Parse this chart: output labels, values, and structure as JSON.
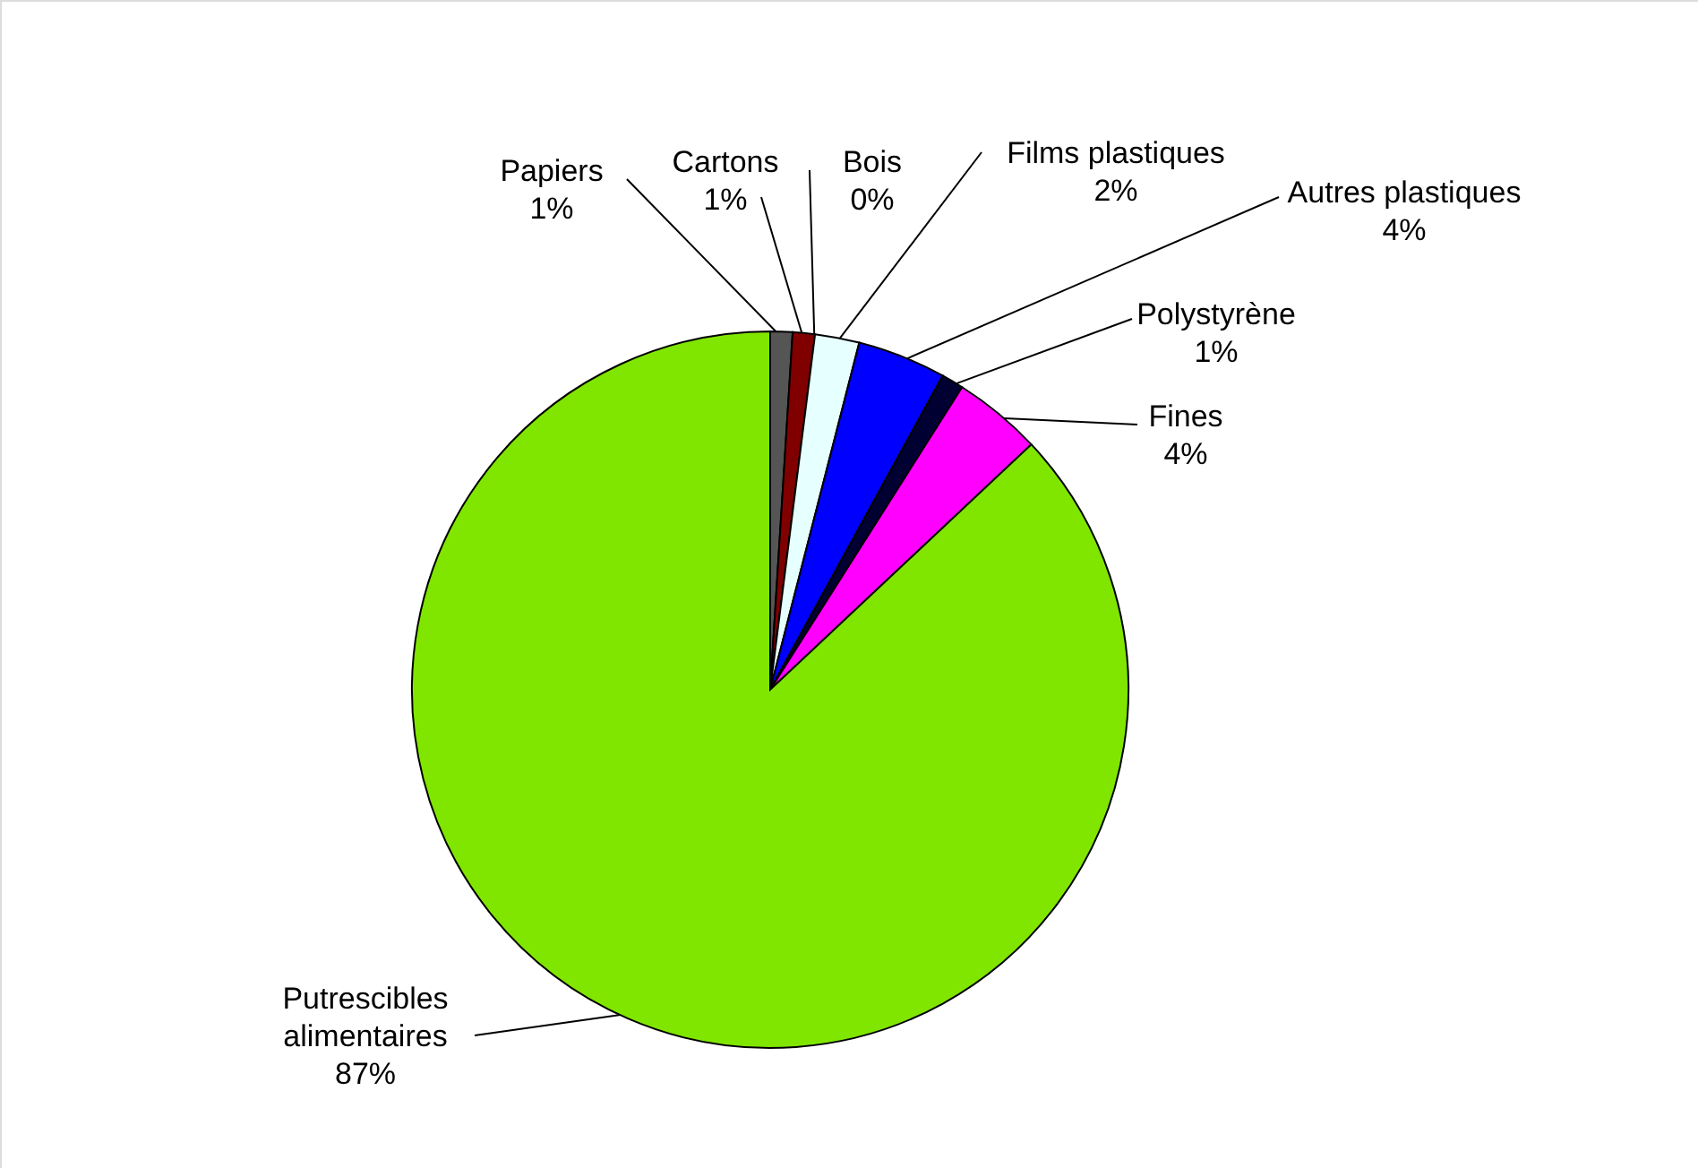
{
  "chart_data": {
    "type": "pie",
    "categories": [
      "Papiers",
      "Cartons",
      "Bois",
      "Films plastiques",
      "Autres plastiques",
      "Polystyrène",
      "Fines",
      "Putrescibles alimentaires"
    ],
    "values": [
      1,
      1,
      0,
      2,
      4,
      1,
      4,
      87
    ],
    "value_labels": [
      "1%",
      "1%",
      "0%",
      "2%",
      "4%",
      "1%",
      "4%",
      "87%"
    ],
    "colors": [
      "#555555",
      "#800000",
      "#6b4a1e",
      "#e6ffff",
      "#0000ff",
      "#000033",
      "#ff00ff",
      "#80e600"
    ]
  }
}
